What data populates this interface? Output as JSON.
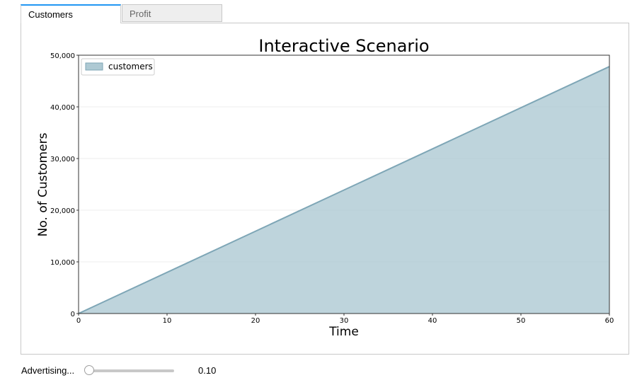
{
  "tabs": [
    {
      "label": "Customers",
      "active": true
    },
    {
      "label": "Profit",
      "active": false
    }
  ],
  "chart_data": {
    "type": "area",
    "title": "Interactive Scenario",
    "xlabel": "Time",
    "ylabel": "No. of Customers",
    "xlim": [
      0,
      60
    ],
    "ylim": [
      0,
      50000
    ],
    "x_ticks": [
      "0",
      "10",
      "20",
      "30",
      "40",
      "50",
      "60"
    ],
    "y_ticks": [
      "0",
      "10,000",
      "20,000",
      "30,000",
      "40,000",
      "50,000"
    ],
    "grid": "horizontal",
    "legend": "top-left",
    "series": [
      {
        "name": "customers",
        "color": "#aec9d3",
        "line_color": "#7ea6b6",
        "x": [
          0,
          60
        ],
        "y": [
          0,
          47800
        ]
      }
    ]
  },
  "slider": {
    "label": "Advertising...",
    "value": 0.1,
    "value_text": "0.10"
  }
}
